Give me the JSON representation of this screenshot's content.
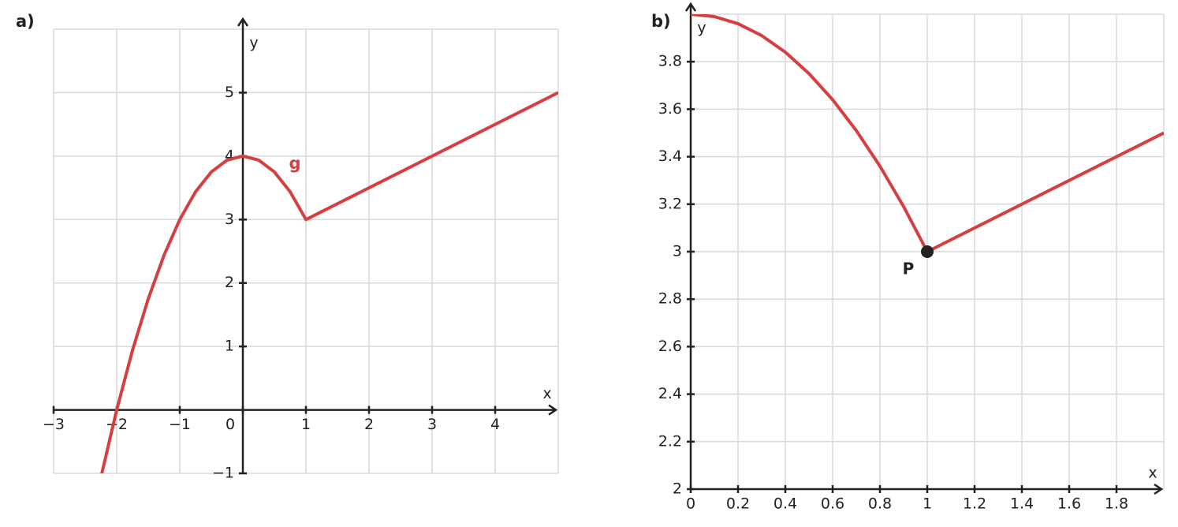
{
  "chart_data": [
    {
      "type": "line",
      "panel_label": "a)",
      "x_label": "x",
      "y_label": "y",
      "xlim": [
        -3,
        5
      ],
      "ylim": [
        -1,
        6
      ],
      "xticks": [
        {
          "value": -3,
          "label": "−3"
        },
        {
          "value": -2,
          "label": "−2"
        },
        {
          "value": -1,
          "label": "−1"
        },
        0,
        1,
        2,
        3,
        4
      ],
      "yticks": [
        {
          "value": -1,
          "label": "−1"
        },
        1,
        2,
        3,
        4,
        5
      ],
      "grid": true,
      "series": [
        {
          "name": "g",
          "color": "#d63f3f",
          "x": [
            -2.25,
            -2,
            -1.75,
            -1.5,
            -1.25,
            -1,
            -0.75,
            -0.5,
            -0.25,
            0,
            0.25,
            0.5,
            0.75,
            1,
            5
          ],
          "values": [
            -1.0625,
            0,
            0.9375,
            1.75,
            2.4375,
            3,
            3.4375,
            3.75,
            3.9375,
            4,
            3.9375,
            3.75,
            3.4375,
            3,
            5
          ]
        }
      ]
    },
    {
      "type": "line",
      "panel_label": "b)",
      "x_label": "x",
      "y_label": "y",
      "xlim": [
        0,
        2
      ],
      "ylim": [
        2,
        4
      ],
      "xticks": [
        0,
        0.2,
        0.4,
        0.6,
        0.8,
        1,
        1.2,
        1.4,
        1.6,
        1.8
      ],
      "yticks": [
        2,
        2.2,
        2.4,
        2.6,
        2.8,
        3,
        3.2,
        3.4,
        3.6,
        3.8
      ],
      "grid": true,
      "series": [
        {
          "color": "#d63f3f",
          "x": [
            0,
            0.1,
            0.2,
            0.3,
            0.4,
            0.5,
            0.6,
            0.7,
            0.8,
            0.9,
            1,
            2
          ],
          "values": [
            4,
            3.99,
            3.96,
            3.91,
            3.84,
            3.75,
            3.64,
            3.51,
            3.36,
            3.19,
            3,
            3.5
          ]
        }
      ],
      "points": [
        {
          "label": "P",
          "x": 1,
          "y": 3,
          "color": "#222"
        }
      ]
    }
  ]
}
